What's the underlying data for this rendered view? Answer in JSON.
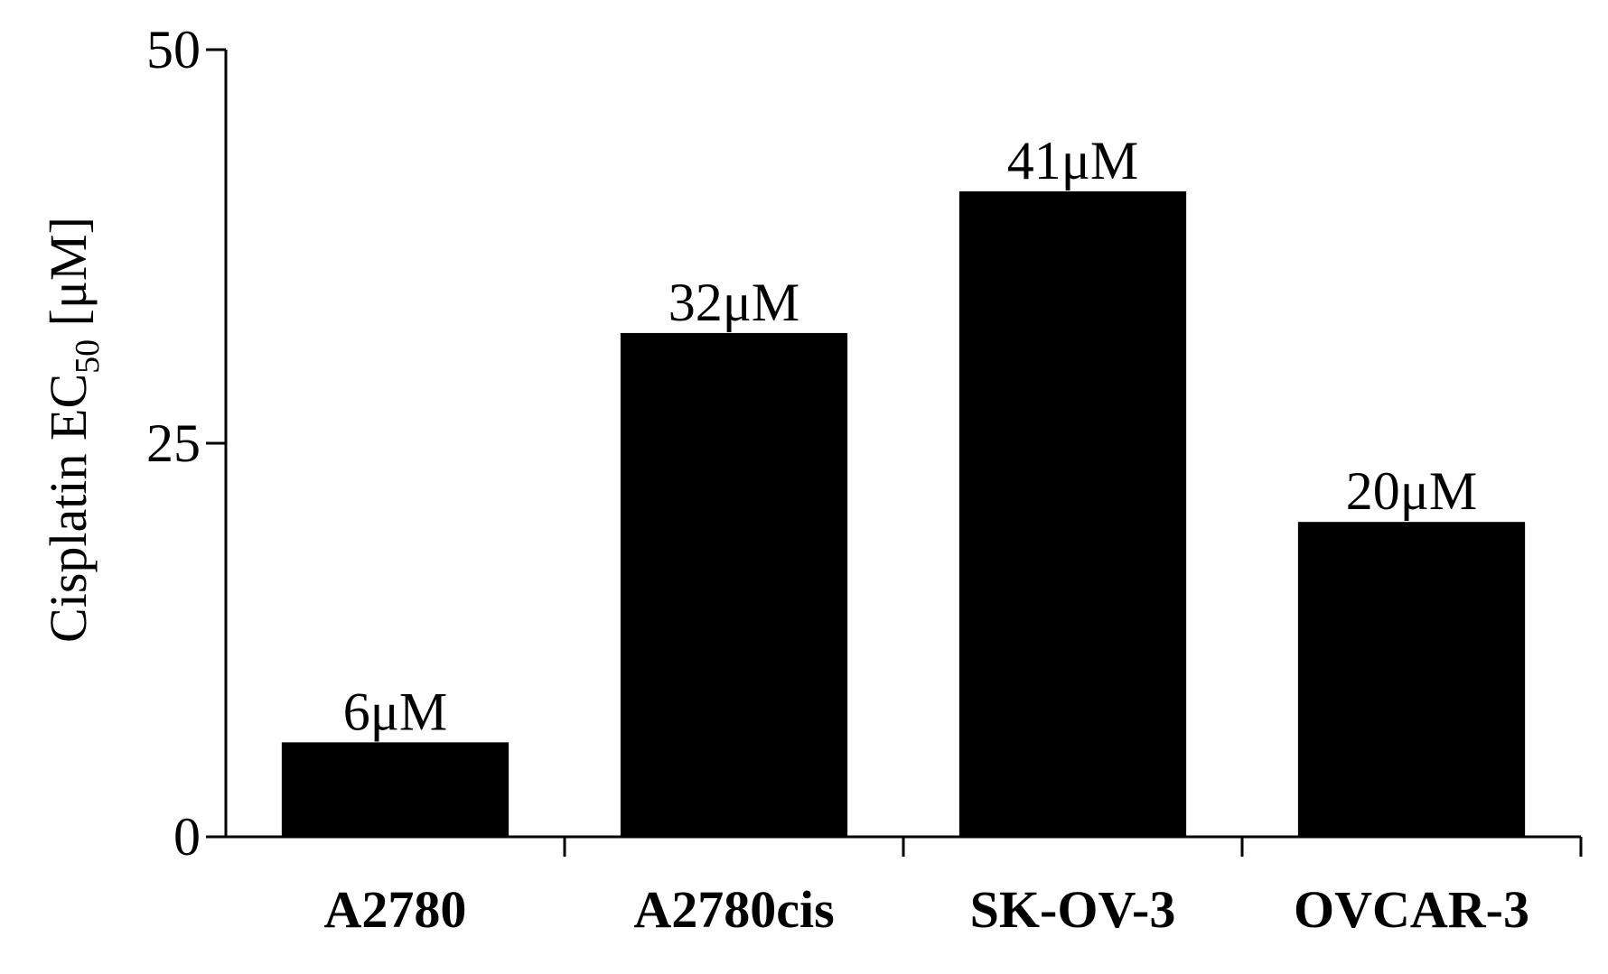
{
  "chart_data": {
    "type": "bar",
    "categories": [
      "A2780",
      "A2780cis",
      "SK-OV-3",
      "OVCAR-3"
    ],
    "values": [
      6,
      32,
      41,
      20
    ],
    "data_labels": [
      "6μM",
      "32μM",
      "41μM",
      "20μM"
    ],
    "ylabel": {
      "main": "Cisplatin EC",
      "sub": "50",
      "unit": " [μM]"
    },
    "ylim": [
      0,
      50
    ],
    "yticks": [
      0,
      25,
      50
    ],
    "grid": false,
    "bar_color": "#000000"
  }
}
